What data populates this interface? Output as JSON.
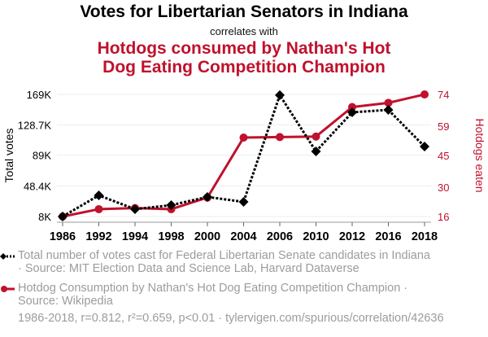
{
  "header": {
    "title": "Votes for Libertarian Senators in Indiana",
    "correlates_with": "correlates with",
    "title2_line1": "Hotdogs consumed by Nathan's Hot",
    "title2_line2": "Dog Eating Competition Champion"
  },
  "colors": {
    "series1": "#000000",
    "series2": "#c0112d",
    "grid": "#eeeeee",
    "muted_text": "#9c9c9c"
  },
  "chart_data": {
    "type": "line",
    "x": [
      "1986",
      "1992",
      "1994",
      "1998",
      "2000",
      "2004",
      "2006",
      "2010",
      "2012",
      "2016",
      "2018"
    ],
    "series": [
      {
        "name": "Total number of votes cast for Federal Libertarian Senate candidates in Indiana",
        "axis": "left",
        "marker": "diamond",
        "line_style": "dotted",
        "color": "#000000",
        "values": [
          8000,
          35900,
          17700,
          23000,
          33800,
          27300,
          168000,
          93900,
          145400,
          148600,
          100300
        ]
      },
      {
        "name": "Hotdog Consumption by Nathan's Hot Dog Eating Competition Champion",
        "axis": "right",
        "marker": "circle",
        "line_style": "solid",
        "color": "#c0112d",
        "values": [
          16,
          19.5,
          20,
          19.5,
          25,
          53.5,
          53.75,
          54,
          68,
          70,
          74
        ]
      }
    ],
    "left_axis": {
      "label": "Total votes",
      "ticks": [
        "8K",
        "48.4K",
        "89K",
        "128.7K",
        "169K"
      ],
      "tick_values": [
        8000,
        48400,
        89000,
        128700,
        169000
      ],
      "range": [
        8000,
        169000
      ]
    },
    "right_axis": {
      "label": "Hotdogs eaten",
      "ticks": [
        "16",
        "30",
        "45",
        "59",
        "74"
      ],
      "tick_values": [
        16,
        30,
        45,
        59,
        74
      ],
      "range": [
        16,
        74
      ]
    },
    "grid": true
  },
  "legend": {
    "series1_line1": "Total number of votes cast for Federal Libertarian Senate candidates in Indiana",
    "series1_line2": "· Source: MIT Election Data and Science Lab, Harvard Dataverse",
    "series2_line1": "Hotdog Consumption by Nathan's Hot Dog Eating Competition Champion ·",
    "series2_line2": "Source: Wikipedia"
  },
  "footer": "1986-2018, r=0.812, r²=0.659, p<0.01 · tylervigen.com/spurious/correlation/42636"
}
